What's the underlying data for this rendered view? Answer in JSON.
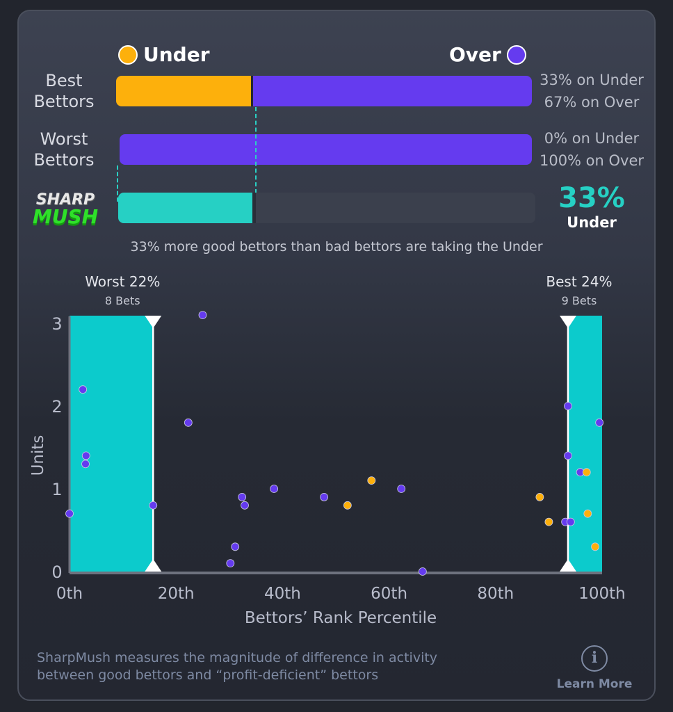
{
  "legend": {
    "under_label": "Under",
    "over_label": "Over"
  },
  "colors": {
    "under": "#fdb00c",
    "over": "#653bef",
    "sharpmush": "#26d0c4",
    "band": "#0ccbcc"
  },
  "rows": [
    {
      "label": "Best Bettors",
      "under_pct": 33,
      "over_pct": 67,
      "under_text": "33% on Under",
      "over_text": "67% on Over"
    },
    {
      "label": "Worst Bettors",
      "under_pct": 0,
      "over_pct": 100,
      "under_text": "0% on Under",
      "over_text": "100% on Over"
    }
  ],
  "sharpmush": {
    "logo_top": "SHARP",
    "logo_bottom": "MUSH",
    "value_pct": 33,
    "value_text": "33%",
    "side": "Under"
  },
  "summary": "33% more good bettors than bad bettors are taking the Under",
  "chart_data": {
    "type": "scatter",
    "xlabel": "Bettors’ Rank Percentile",
    "ylabel": "Units",
    "xlim": [
      0,
      100
    ],
    "ylim": [
      0,
      3
    ],
    "x_ticks": [
      "0th",
      "20th",
      "40th",
      "60th",
      "80th",
      "100th"
    ],
    "y_ticks": [
      "0",
      "1",
      "2",
      "3"
    ],
    "bands": [
      {
        "title": "Worst 22%",
        "sub": "8 Bets",
        "from": 0,
        "to": 15.7
      },
      {
        "title": "Best 24%",
        "sub": "9 Bets",
        "from": 93.6,
        "to": 100
      }
    ],
    "points": [
      {
        "x": 0,
        "y": 0.7,
        "side": "over"
      },
      {
        "x": 2.5,
        "y": 2.2,
        "side": "over"
      },
      {
        "x": 3.1,
        "y": 1.4,
        "side": "over"
      },
      {
        "x": 3,
        "y": 1.3,
        "side": "over"
      },
      {
        "x": 15.7,
        "y": 0.8,
        "side": "over"
      },
      {
        "x": 22.3,
        "y": 1.8,
        "side": "over"
      },
      {
        "x": 25,
        "y": 3.1,
        "side": "over"
      },
      {
        "x": 30.2,
        "y": 0.1,
        "side": "over"
      },
      {
        "x": 31.1,
        "y": 0.3,
        "side": "over"
      },
      {
        "x": 32.4,
        "y": 0.9,
        "side": "over"
      },
      {
        "x": 32.9,
        "y": 0.8,
        "side": "over"
      },
      {
        "x": 38.4,
        "y": 1.0,
        "side": "over"
      },
      {
        "x": 47.8,
        "y": 0.9,
        "side": "over"
      },
      {
        "x": 52.2,
        "y": 0.8,
        "side": "under"
      },
      {
        "x": 56.7,
        "y": 1.1,
        "side": "under"
      },
      {
        "x": 62.3,
        "y": 1.0,
        "side": "over"
      },
      {
        "x": 66.3,
        "y": 0,
        "side": "over"
      },
      {
        "x": 88.3,
        "y": 0.9,
        "side": "under"
      },
      {
        "x": 90,
        "y": 0.6,
        "side": "under"
      },
      {
        "x": 93.1,
        "y": 0.6,
        "side": "over"
      },
      {
        "x": 94.1,
        "y": 0.6,
        "side": "over"
      },
      {
        "x": 93.6,
        "y": 2.0,
        "side": "over"
      },
      {
        "x": 93.6,
        "y": 1.4,
        "side": "over"
      },
      {
        "x": 95.9,
        "y": 1.2,
        "side": "over"
      },
      {
        "x": 97.1,
        "y": 1.2,
        "side": "under"
      },
      {
        "x": 97.3,
        "y": 0.7,
        "side": "under"
      },
      {
        "x": 98.7,
        "y": 0.3,
        "side": "under"
      },
      {
        "x": 99.5,
        "y": 1.8,
        "side": "over"
      }
    ]
  },
  "footer": {
    "text_line1": "SharpMush measures the magnitude of difference in activity",
    "text_line2": "between good bettors and “profit-deficient” bettors",
    "learn_more": "Learn More"
  }
}
